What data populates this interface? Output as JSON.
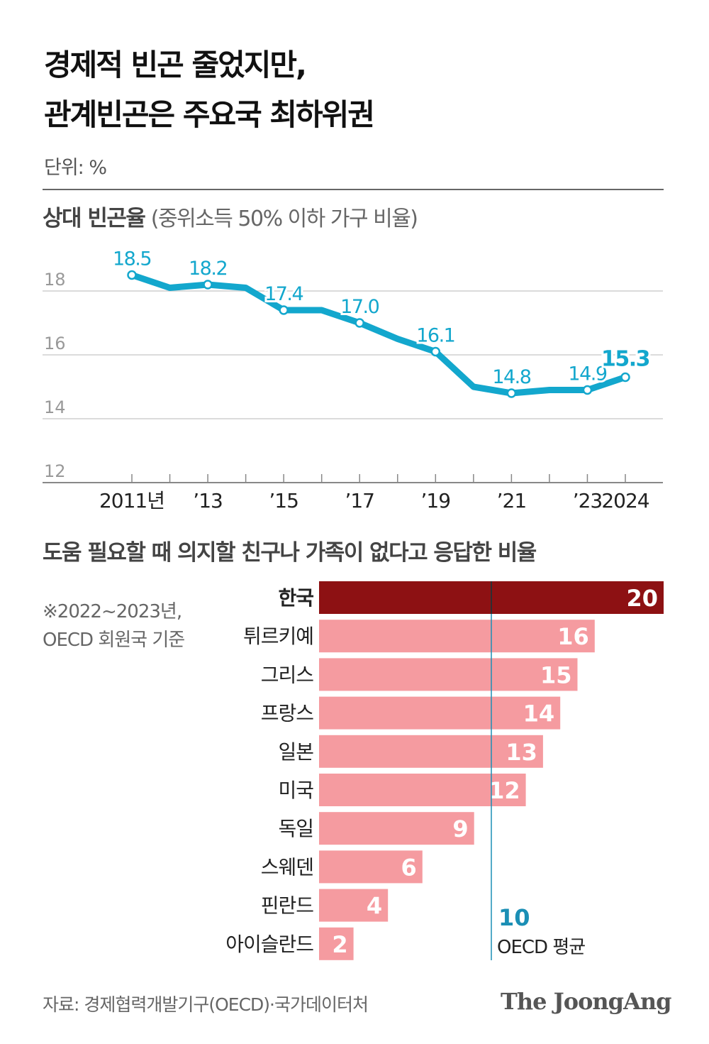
{
  "title": {
    "line1": "경제적 빈곤 줄었지만,",
    "line2": "관계빈곤은 주요국 최하위권"
  },
  "unit": "단위: %",
  "line_chart": {
    "heading": "상대 빈곤율",
    "subheading": "(중위소득 50% 이하 가구 비율)"
  },
  "bar_chart": {
    "heading": "도움 필요할 때 의지할 친구나 가족이 없다고 응답한 비율",
    "note_line1": "※2022~2023년,",
    "note_line2": "OECD 회원국 기준",
    "avg_value_label": "10",
    "avg_label": "OECD 평균"
  },
  "source": "자료: 경제협력개발기구(OECD)·국가데이터처",
  "logo": "The JoongAng",
  "colors": {
    "line": "#13a7cd",
    "highlight_bar": "#8d1113",
    "bar": "#f59ba0",
    "avg_line": "#1b8fb5",
    "grid": "#cfcfcf"
  },
  "chart_data": [
    {
      "type": "line",
      "title": "상대 빈곤율",
      "ylabel": "%",
      "ylim": [
        12,
        19
      ],
      "yticks": [
        12,
        14,
        16,
        18
      ],
      "x": [
        2011,
        2012,
        2013,
        2014,
        2015,
        2016,
        2017,
        2018,
        2019,
        2020,
        2021,
        2022,
        2023,
        2024
      ],
      "xtick_values": [
        2011,
        2013,
        2015,
        2017,
        2019,
        2021,
        2023,
        2024
      ],
      "xtick_labels": [
        "2011년",
        "’13",
        "’15",
        "’17",
        "’19",
        "’21",
        "’23",
        "2024"
      ],
      "values": [
        18.5,
        18.1,
        18.2,
        18.1,
        17.4,
        17.4,
        17.0,
        16.5,
        16.1,
        15.0,
        14.8,
        14.9,
        14.9,
        15.3
      ],
      "labeled_points": [
        {
          "x": 2011,
          "label": "18.5"
        },
        {
          "x": 2013,
          "label": "18.2"
        },
        {
          "x": 2015,
          "label": "17.4"
        },
        {
          "x": 2017,
          "label": "17.0"
        },
        {
          "x": 2019,
          "label": "16.1"
        },
        {
          "x": 2021,
          "label": "14.8"
        },
        {
          "x": 2023,
          "label": "14.9"
        },
        {
          "x": 2024,
          "label": "15.3"
        }
      ]
    },
    {
      "type": "bar",
      "orientation": "horizontal",
      "title": "도움 필요할 때 의지할 친구나 가족이 없다고 응답한 비율",
      "categories": [
        "한국",
        "튀르키예",
        "그리스",
        "프랑스",
        "일본",
        "미국",
        "독일",
        "스웨덴",
        "핀란드",
        "아이슬란드"
      ],
      "values": [
        20,
        16,
        15,
        14,
        13,
        12,
        9,
        6,
        4,
        2
      ],
      "highlight": "한국",
      "reference_line": {
        "value": 10,
        "label": "OECD 평균"
      },
      "xlim": [
        0,
        20
      ]
    }
  ]
}
